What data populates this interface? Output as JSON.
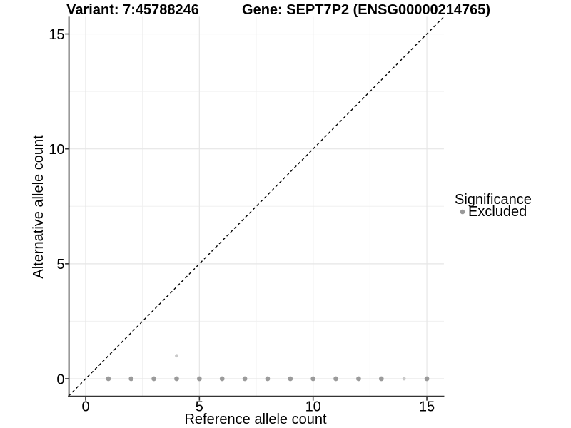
{
  "chart_data": {
    "type": "scatter",
    "title": "Variant: 7:45788246    Gene: SEPT7P2 (ENSG00000214765)",
    "titles": {
      "left": "Variant: 7:45788246",
      "right": "Gene: SEPT7P2 (ENSG00000214765)"
    },
    "xlabel": "Reference allele count",
    "ylabel": "Alternative allele count",
    "xlim": [
      -0.75,
      15.75
    ],
    "ylim": [
      -0.75,
      15.75
    ],
    "xticks": [
      0,
      5,
      10,
      15
    ],
    "yticks": [
      0,
      5,
      10,
      15
    ],
    "minor_breaks": [
      2.5,
      7.5,
      12.5
    ],
    "grid": true,
    "identity_line": {
      "from": -0.75,
      "to": 15.75,
      "style": "dashed",
      "color": "#000000"
    },
    "series": [
      {
        "name": "Excluded",
        "points": [
          {
            "x": 1,
            "y": 0,
            "shade": "dark"
          },
          {
            "x": 2,
            "y": 0,
            "shade": "dark"
          },
          {
            "x": 3,
            "y": 0,
            "shade": "dark"
          },
          {
            "x": 4,
            "y": 0,
            "shade": "dark"
          },
          {
            "x": 4,
            "y": 1,
            "shade": "light"
          },
          {
            "x": 5,
            "y": 0,
            "shade": "dark"
          },
          {
            "x": 6,
            "y": 0,
            "shade": "dark"
          },
          {
            "x": 7,
            "y": 0,
            "shade": "dark"
          },
          {
            "x": 8,
            "y": 0,
            "shade": "dark"
          },
          {
            "x": 9,
            "y": 0,
            "shade": "dark"
          },
          {
            "x": 10,
            "y": 0,
            "shade": "dark"
          },
          {
            "x": 11,
            "y": 0,
            "shade": "dark"
          },
          {
            "x": 12,
            "y": 0,
            "shade": "dark"
          },
          {
            "x": 13,
            "y": 0,
            "shade": "dark"
          },
          {
            "x": 14,
            "y": 0,
            "shade": "light"
          },
          {
            "x": 15,
            "y": 0,
            "shade": "dark"
          }
        ]
      }
    ],
    "point_style": {
      "dark": {
        "color": "#9b9b9b",
        "r": 3.4
      },
      "light": {
        "color": "#c9c9c9",
        "r": 2.4
      }
    },
    "legend": {
      "position": "right",
      "title": "Significance",
      "entries": [
        {
          "label": "Excluded",
          "color": "#999999"
        }
      ]
    },
    "colors": {
      "axis_line": "#333333",
      "grid_major": "#e6e6e6",
      "grid_minor": "#f0f0f0",
      "identity_line": "#000000",
      "text": "#000000"
    }
  }
}
